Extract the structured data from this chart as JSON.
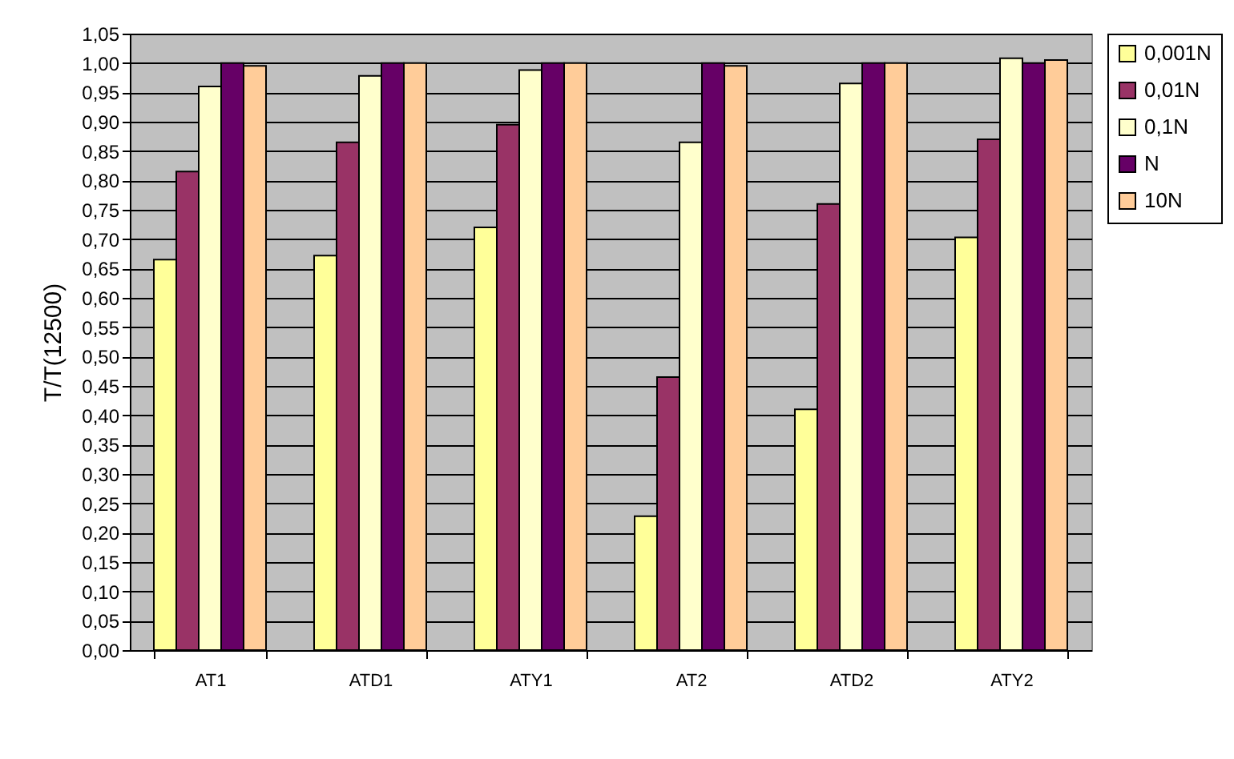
{
  "chart_data": {
    "type": "bar",
    "ylabel": "T/T(12500)",
    "categories": [
      "AT1",
      "ATD1",
      "ATY1",
      "AT2",
      "ATD2",
      "ATY2"
    ],
    "series": [
      {
        "name": "0,001N",
        "color": "#ffff99",
        "values": [
          0.665,
          0.672,
          0.72,
          0.228,
          0.41,
          0.703
        ]
      },
      {
        "name": "0,01N",
        "color": "#993366",
        "values": [
          0.815,
          0.865,
          0.895,
          0.465,
          0.76,
          0.87
        ]
      },
      {
        "name": "0,1N",
        "color": "#ffffcc",
        "values": [
          0.96,
          0.978,
          0.988,
          0.865,
          0.965,
          1.008
        ]
      },
      {
        "name": "N",
        "color": "#660066",
        "values": [
          1.0,
          1.0,
          1.0,
          1.0,
          1.0,
          1.0
        ]
      },
      {
        "name": "10N",
        "color": "#ffcc99",
        "values": [
          0.995,
          1.0,
          1.0,
          0.995,
          1.0,
          1.005
        ]
      }
    ],
    "ylim": [
      0,
      1.05
    ],
    "yticks": [
      {
        "value": 0,
        "label": "0,00"
      },
      {
        "value": 0.05,
        "label": "0,05"
      },
      {
        "value": 0.1,
        "label": "0,10"
      },
      {
        "value": 0.15,
        "label": "0,15"
      },
      {
        "value": 0.2,
        "label": "0,20"
      },
      {
        "value": 0.25,
        "label": "0,25"
      },
      {
        "value": 0.3,
        "label": "0,30"
      },
      {
        "value": 0.35,
        "label": "0,35"
      },
      {
        "value": 0.4,
        "label": "0,40"
      },
      {
        "value": 0.45,
        "label": "0,45"
      },
      {
        "value": 0.5,
        "label": "0,50"
      },
      {
        "value": 0.55,
        "label": "0,55"
      },
      {
        "value": 0.6,
        "label": "0,60"
      },
      {
        "value": 0.65,
        "label": "0,65"
      },
      {
        "value": 0.7,
        "label": "0,70"
      },
      {
        "value": 0.75,
        "label": "0,75"
      },
      {
        "value": 0.8,
        "label": "0,80"
      },
      {
        "value": 0.85,
        "label": "0,85"
      },
      {
        "value": 0.9,
        "label": "0,90"
      },
      {
        "value": 0.95,
        "label": "0,95"
      },
      {
        "value": 1.0,
        "label": "1,00"
      },
      {
        "value": 1.05,
        "label": "1,05"
      }
    ],
    "grid": true,
    "legend": "right"
  }
}
